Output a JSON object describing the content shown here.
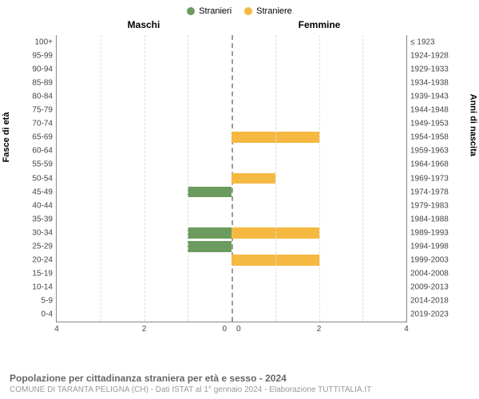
{
  "chart": {
    "type": "population-pyramid",
    "legend": [
      {
        "label": "Stranieri",
        "color": "#6b9b5e"
      },
      {
        "label": "Straniere",
        "color": "#f5b942"
      }
    ],
    "columns": {
      "left": "Maschi",
      "right": "Femmine"
    },
    "y_label_left": "Fasce di età",
    "y_label_right": "Anni di nascita",
    "x_max": 4,
    "x_ticks": [
      4,
      2,
      0,
      0,
      2,
      4
    ],
    "grid_color": "#dddddd",
    "center_line_color": "#999999",
    "background_color": "#ffffff",
    "bar_height_pct": 80,
    "font_size_ticks": 10,
    "font_size_labels": 11,
    "data": [
      {
        "age": "100+",
        "year": "≤ 1923",
        "m": 0,
        "f": 0
      },
      {
        "age": "95-99",
        "year": "1924-1928",
        "m": 0,
        "f": 0
      },
      {
        "age": "90-94",
        "year": "1929-1933",
        "m": 0,
        "f": 0
      },
      {
        "age": "85-89",
        "year": "1934-1938",
        "m": 0,
        "f": 0
      },
      {
        "age": "80-84",
        "year": "1939-1943",
        "m": 0,
        "f": 0
      },
      {
        "age": "75-79",
        "year": "1944-1948",
        "m": 0,
        "f": 0
      },
      {
        "age": "70-74",
        "year": "1949-1953",
        "m": 0,
        "f": 0
      },
      {
        "age": "65-69",
        "year": "1954-1958",
        "m": 0,
        "f": 2
      },
      {
        "age": "60-64",
        "year": "1959-1963",
        "m": 0,
        "f": 0
      },
      {
        "age": "55-59",
        "year": "1964-1968",
        "m": 0,
        "f": 0
      },
      {
        "age": "50-54",
        "year": "1969-1973",
        "m": 0,
        "f": 1
      },
      {
        "age": "45-49",
        "year": "1974-1978",
        "m": 1,
        "f": 0
      },
      {
        "age": "40-44",
        "year": "1979-1983",
        "m": 0,
        "f": 0
      },
      {
        "age": "35-39",
        "year": "1984-1988",
        "m": 0,
        "f": 0
      },
      {
        "age": "30-34",
        "year": "1989-1993",
        "m": 1,
        "f": 2
      },
      {
        "age": "25-29",
        "year": "1994-1998",
        "m": 1,
        "f": 0
      },
      {
        "age": "20-24",
        "year": "1999-2003",
        "m": 0,
        "f": 2
      },
      {
        "age": "15-19",
        "year": "2004-2008",
        "m": 0,
        "f": 0
      },
      {
        "age": "10-14",
        "year": "2009-2013",
        "m": 0,
        "f": 0
      },
      {
        "age": "5-9",
        "year": "2014-2018",
        "m": 0,
        "f": 0
      },
      {
        "age": "0-4",
        "year": "2019-2023",
        "m": 0,
        "f": 0
      }
    ]
  },
  "footer": {
    "title": "Popolazione per cittadinanza straniera per età e sesso - 2024",
    "subtitle": "COMUNE DI TARANTA PELIGNA (CH) - Dati ISTAT al 1° gennaio 2024 - Elaborazione TUTTITALIA.IT"
  }
}
